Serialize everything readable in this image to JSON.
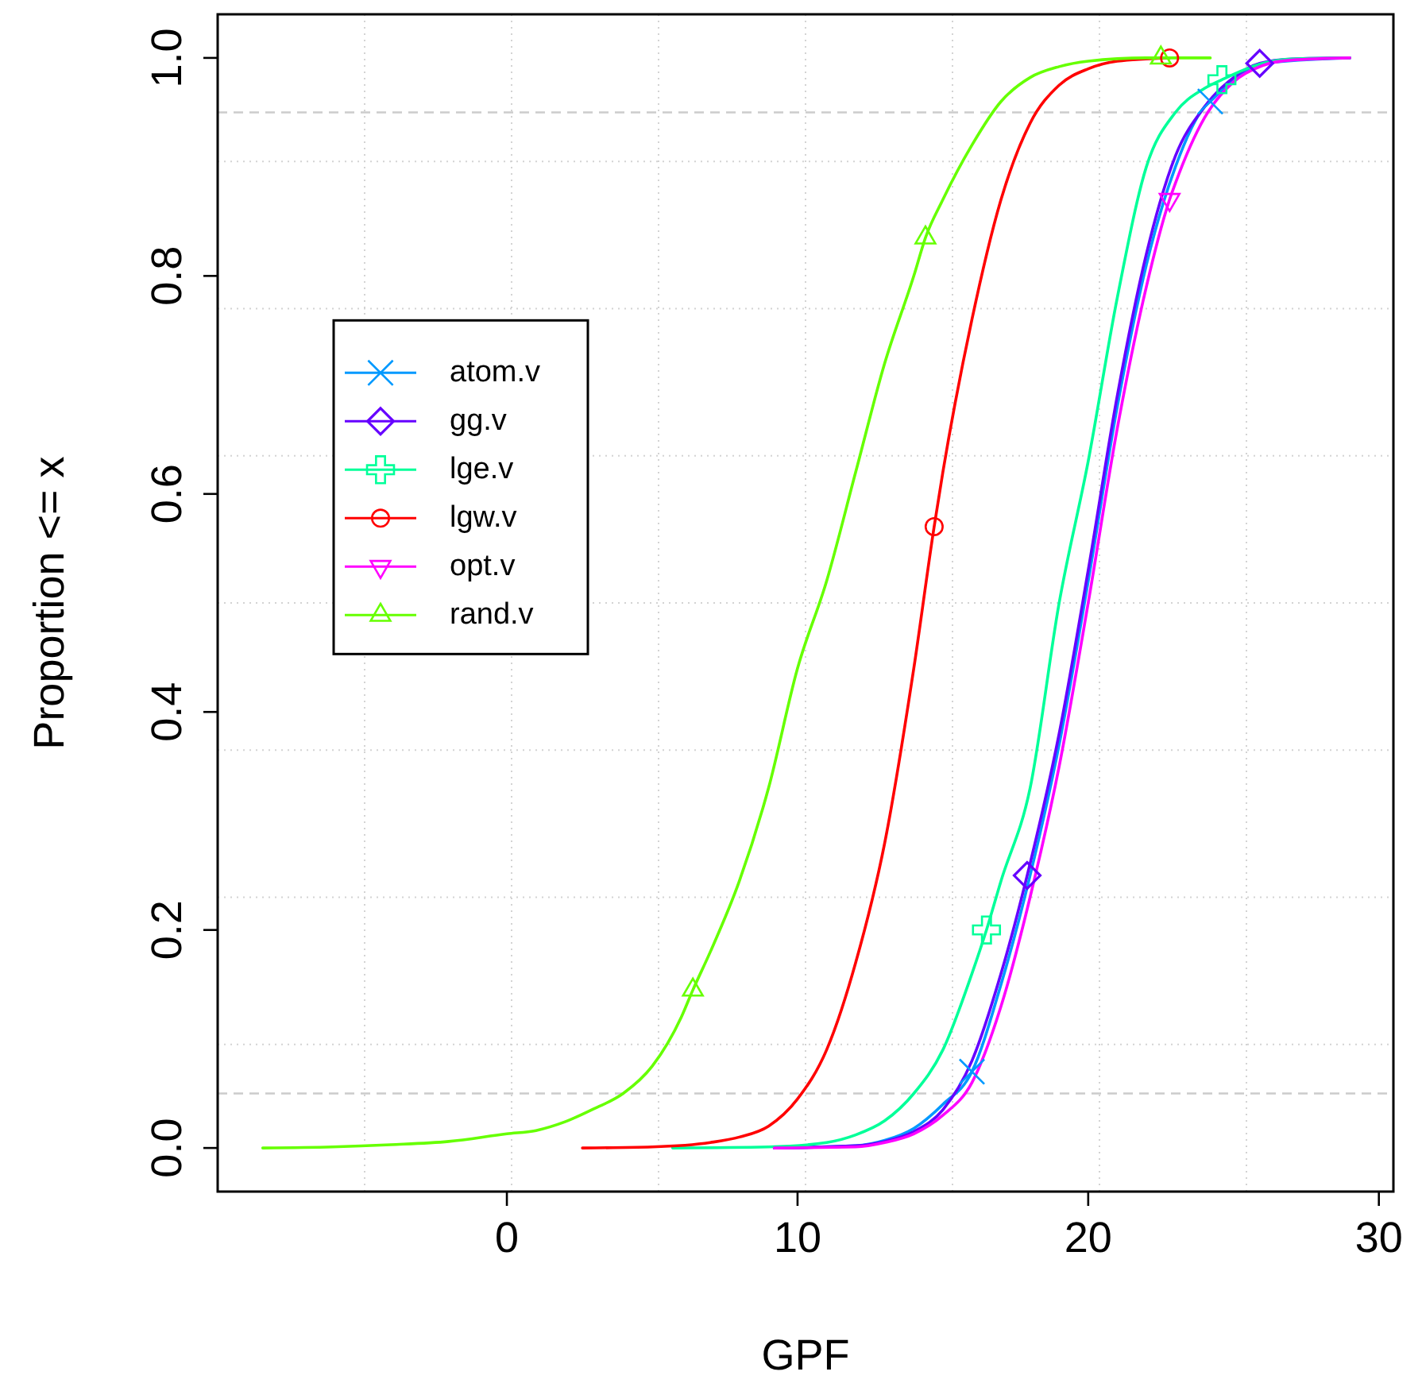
{
  "chart_data": {
    "type": "line",
    "xlabel": "GPF",
    "ylabel": "Proportion <= x",
    "xlim": [
      -9.95,
      30.5
    ],
    "ylim": [
      -0.04,
      1.04
    ],
    "xticks": [
      0,
      10,
      20,
      30
    ],
    "yticks": [
      {
        "value": 0,
        "label": "0.0"
      },
      {
        "value": 0.2,
        "label": "0.2"
      },
      {
        "value": 0.4,
        "label": "0.4"
      },
      {
        "value": 0.6,
        "label": "0.6"
      },
      {
        "value": 0.8,
        "label": "0.8"
      },
      {
        "value": 1,
        "label": "1.0"
      }
    ],
    "grid": true,
    "legend": "left",
    "line_style": "solid",
    "ref_lines": [
      {
        "axis": "y",
        "value": 0.05,
        "color": "#cccccc",
        "line_style": "dashed"
      },
      {
        "axis": "y",
        "value": 0.95,
        "color": "#cccccc",
        "line_style": "dashed"
      }
    ],
    "series": [
      {
        "name": "atom.v",
        "type": "line",
        "color": "#0099ff",
        "x": [
          9.2,
          12,
          13,
          14,
          15,
          16,
          17,
          18,
          19,
          20,
          21,
          22,
          23,
          24,
          24.2,
          25,
          26,
          29
        ],
        "values": [
          0,
          0.002,
          0.007,
          0.018,
          0.04,
          0.07,
          0.15,
          0.25,
          0.37,
          0.52,
          0.68,
          0.81,
          0.9,
          0.955,
          0.96,
          0.98,
          0.995,
          1
        ]
      },
      {
        "name": "gg.v",
        "type": "line",
        "color": "#6600ff",
        "x": [
          9.2,
          12,
          13,
          14,
          15,
          16,
          17,
          17.9,
          19,
          20,
          21,
          22,
          23,
          24,
          25,
          25.9,
          27,
          29
        ],
        "values": [
          0,
          0.002,
          0.006,
          0.015,
          0.035,
          0.08,
          0.16,
          0.25,
          0.38,
          0.53,
          0.69,
          0.82,
          0.91,
          0.955,
          0.982,
          0.995,
          0.999,
          1
        ]
      },
      {
        "name": "lge.v",
        "type": "line",
        "color": "#00ff99",
        "x": [
          5.7,
          9,
          11,
          12,
          13,
          14,
          15,
          16,
          16.5,
          17,
          18,
          19,
          20,
          21,
          22,
          23,
          24,
          24.6,
          26,
          27,
          29
        ],
        "values": [
          0,
          0.001,
          0.005,
          0.012,
          0.025,
          0.05,
          0.09,
          0.16,
          0.2,
          0.245,
          0.33,
          0.5,
          0.63,
          0.78,
          0.9,
          0.95,
          0.972,
          0.98,
          0.995,
          0.999,
          1
        ]
      },
      {
        "name": "lgw.v",
        "type": "line",
        "color": "#ff0000",
        "x": [
          2.6,
          5,
          7,
          8,
          9,
          10,
          11,
          12,
          13,
          14,
          14.7,
          15,
          16,
          17,
          18,
          19,
          20,
          21,
          22.8
        ],
        "values": [
          0,
          0.001,
          0.005,
          0.01,
          0.02,
          0.045,
          0.09,
          0.17,
          0.28,
          0.44,
          0.57,
          0.62,
          0.76,
          0.87,
          0.94,
          0.975,
          0.99,
          0.997,
          1
        ]
      },
      {
        "name": "opt.v",
        "type": "line",
        "color": "#ff00ff",
        "x": [
          9.2,
          12,
          13,
          14,
          15,
          16,
          17,
          18,
          19,
          20,
          21,
          22,
          22.8,
          23,
          24,
          25,
          26,
          27,
          29
        ],
        "values": [
          0,
          0.001,
          0.005,
          0.013,
          0.03,
          0.06,
          0.13,
          0.23,
          0.35,
          0.5,
          0.66,
          0.79,
          0.87,
          0.885,
          0.945,
          0.978,
          0.993,
          0.998,
          1
        ]
      },
      {
        "name": "rand.v",
        "type": "line",
        "color": "#66ff00",
        "x": [
          -8.4,
          -6,
          -4,
          -2,
          0,
          1,
          2,
          3,
          4,
          5,
          6,
          6.4,
          7,
          8,
          9,
          10,
          11,
          12,
          13,
          14,
          14.4,
          15,
          16,
          17,
          18,
          19,
          20,
          22,
          24.2
        ],
        "values": [
          0,
          0.001,
          0.003,
          0.006,
          0.013,
          0.016,
          0.024,
          0.036,
          0.05,
          0.075,
          0.12,
          0.145,
          0.18,
          0.245,
          0.33,
          0.44,
          0.52,
          0.62,
          0.72,
          0.8,
          0.835,
          0.87,
          0.92,
          0.96,
          0.982,
          0.992,
          0.997,
          1,
          1
        ]
      },
      {
        "type": "scatter",
        "marker": "x",
        "color": "#0099ff",
        "x": [
          16.0,
          24.2
        ],
        "values": [
          0.07,
          0.96
        ]
      },
      {
        "type": "scatter",
        "marker": "diamond",
        "color": "#6600ff",
        "x": [
          17.9,
          25.9
        ],
        "values": [
          0.25,
          0.995
        ]
      },
      {
        "type": "scatter",
        "marker": "cross",
        "color": "#00ff99",
        "x": [
          16.5,
          24.6
        ],
        "values": [
          0.2,
          0.98
        ]
      },
      {
        "type": "scatter",
        "marker": "circle",
        "color": "#ff0000",
        "x": [
          14.7,
          22.8
        ],
        "values": [
          0.57,
          1
        ]
      },
      {
        "type": "scatter",
        "marker": "triangle-down",
        "color": "#ff00ff",
        "x": [
          22.8
        ],
        "values": [
          0.87
        ]
      },
      {
        "type": "scatter",
        "marker": "triangle",
        "color": "#66ff00",
        "x": [
          6.4,
          14.4,
          22.5
        ],
        "values": [
          0.145,
          0.835,
          1
        ]
      }
    ]
  }
}
